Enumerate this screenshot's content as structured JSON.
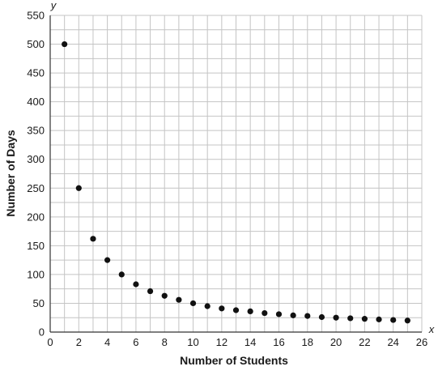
{
  "chart_data": {
    "type": "scatter",
    "title": "",
    "xlabel": "Number of Students",
    "ylabel": "Number of Days",
    "x_axis_letter": "x",
    "y_axis_letter": "y",
    "xlim": [
      0,
      26
    ],
    "ylim": [
      0,
      550
    ],
    "x_ticks": [
      0,
      2,
      4,
      6,
      8,
      10,
      12,
      14,
      16,
      18,
      20,
      22,
      24,
      26
    ],
    "y_ticks": [
      0,
      50,
      100,
      150,
      200,
      250,
      300,
      350,
      400,
      450,
      500,
      550
    ],
    "grid": true,
    "grid_minor_x": 1,
    "grid_minor_y": 25,
    "colors": {
      "point": "#111111",
      "grid": "#c4c4c4",
      "axis": "#333333"
    },
    "series": [
      {
        "points": [
          {
            "x": 1,
            "y": 500
          },
          {
            "x": 2,
            "y": 250
          },
          {
            "x": 3,
            "y": 162
          },
          {
            "x": 4,
            "y": 125
          },
          {
            "x": 5,
            "y": 100
          },
          {
            "x": 6,
            "y": 83
          },
          {
            "x": 7,
            "y": 71
          },
          {
            "x": 8,
            "y": 63
          },
          {
            "x": 9,
            "y": 56
          },
          {
            "x": 10,
            "y": 50
          },
          {
            "x": 11,
            "y": 45
          },
          {
            "x": 12,
            "y": 41
          },
          {
            "x": 13,
            "y": 38
          },
          {
            "x": 14,
            "y": 36
          },
          {
            "x": 15,
            "y": 33
          },
          {
            "x": 16,
            "y": 31
          },
          {
            "x": 17,
            "y": 29
          },
          {
            "x": 18,
            "y": 28
          },
          {
            "x": 19,
            "y": 26
          },
          {
            "x": 20,
            "y": 25
          },
          {
            "x": 21,
            "y": 24
          },
          {
            "x": 22,
            "y": 23
          },
          {
            "x": 23,
            "y": 22
          },
          {
            "x": 24,
            "y": 21
          },
          {
            "x": 25,
            "y": 20
          }
        ]
      }
    ]
  }
}
